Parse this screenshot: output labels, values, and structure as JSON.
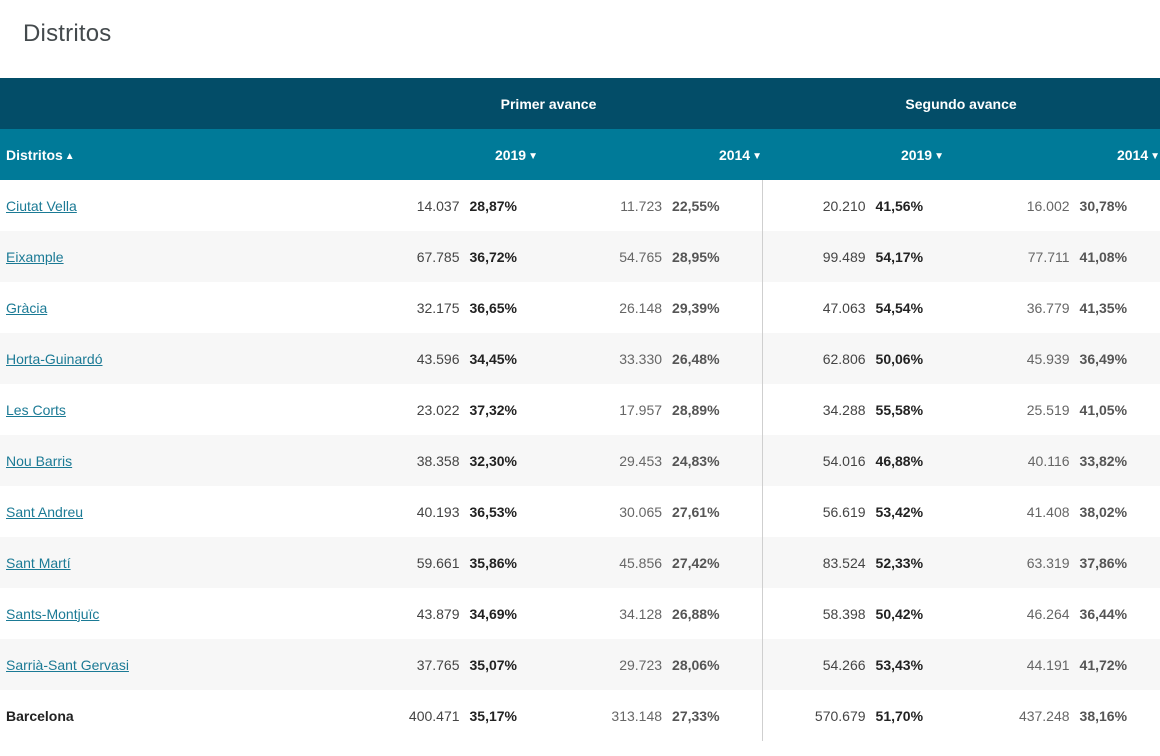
{
  "page": {
    "title": "Distritos"
  },
  "table": {
    "group_headers": {
      "first": "Primer avance",
      "second": "Segundo avance"
    },
    "columns": {
      "name": "Distritos",
      "name_sort": "▲",
      "a_year": "2019",
      "b_year": "2014",
      "c_year": "2019",
      "d_year": "2014",
      "year_sort": "▼"
    },
    "rows": [
      {
        "name": "Ciutat Vella",
        "a_n": "14.037",
        "a_p": "28,87%",
        "b_n": "11.723",
        "b_p": "22,55%",
        "c_n": "20.210",
        "c_p": "41,56%",
        "d_n": "16.002",
        "d_p": "30,78%"
      },
      {
        "name": "Eixample",
        "a_n": "67.785",
        "a_p": "36,72%",
        "b_n": "54.765",
        "b_p": "28,95%",
        "c_n": "99.489",
        "c_p": "54,17%",
        "d_n": "77.711",
        "d_p": "41,08%"
      },
      {
        "name": "Gràcia",
        "a_n": "32.175",
        "a_p": "36,65%",
        "b_n": "26.148",
        "b_p": "29,39%",
        "c_n": "47.063",
        "c_p": "54,54%",
        "d_n": "36.779",
        "d_p": "41,35%"
      },
      {
        "name": "Horta-Guinardó",
        "a_n": "43.596",
        "a_p": "34,45%",
        "b_n": "33.330",
        "b_p": "26,48%",
        "c_n": "62.806",
        "c_p": "50,06%",
        "d_n": "45.939",
        "d_p": "36,49%"
      },
      {
        "name": "Les Corts",
        "a_n": "23.022",
        "a_p": "37,32%",
        "b_n": "17.957",
        "b_p": "28,89%",
        "c_n": "34.288",
        "c_p": "55,58%",
        "d_n": "25.519",
        "d_p": "41,05%"
      },
      {
        "name": "Nou Barris",
        "a_n": "38.358",
        "a_p": "32,30%",
        "b_n": "29.453",
        "b_p": "24,83%",
        "c_n": "54.016",
        "c_p": "46,88%",
        "d_n": "40.116",
        "d_p": "33,82%"
      },
      {
        "name": "Sant Andreu",
        "a_n": "40.193",
        "a_p": "36,53%",
        "b_n": "30.065",
        "b_p": "27,61%",
        "c_n": "56.619",
        "c_p": "53,42%",
        "d_n": "41.408",
        "d_p": "38,02%"
      },
      {
        "name": "Sant Martí",
        "a_n": "59.661",
        "a_p": "35,86%",
        "b_n": "45.856",
        "b_p": "27,42%",
        "c_n": "83.524",
        "c_p": "52,33%",
        "d_n": "63.319",
        "d_p": "37,86%"
      },
      {
        "name": "Sants-Montjuïc",
        "a_n": "43.879",
        "a_p": "34,69%",
        "b_n": "34.128",
        "b_p": "26,88%",
        "c_n": "58.398",
        "c_p": "50,42%",
        "d_n": "46.264",
        "d_p": "36,44%"
      },
      {
        "name": "Sarrià-Sant Gervasi",
        "a_n": "37.765",
        "a_p": "35,07%",
        "b_n": "29.723",
        "b_p": "28,06%",
        "c_n": "54.266",
        "c_p": "53,43%",
        "d_n": "44.191",
        "d_p": "41,72%"
      }
    ],
    "total": {
      "name": "Barcelona",
      "a_n": "400.471",
      "a_p": "35,17%",
      "b_n": "313.148",
      "b_p": "27,33%",
      "c_n": "570.679",
      "c_p": "51,70%",
      "d_n": "437.248",
      "d_p": "38,16%"
    }
  },
  "colors": {
    "group_header_bg": "#034d68",
    "sub_header_bg": "#007a98",
    "link": "#1b7a95",
    "row_alt_bg": "#f7f7f7"
  }
}
